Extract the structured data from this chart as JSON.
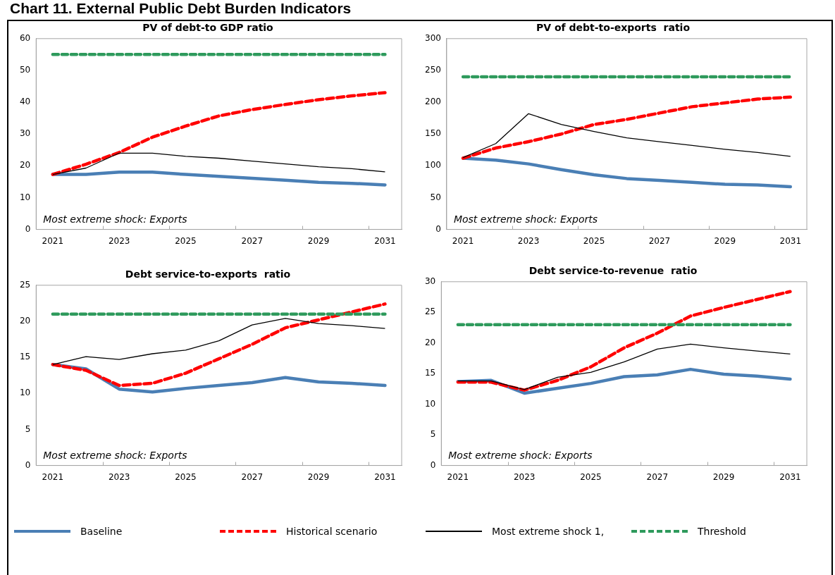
{
  "chart_data": [
    {
      "type": "other",
      "title": "Chart 11. External Public Debt Burden Indicators"
    },
    {
      "type": "line",
      "title": "PV of debt-to GDP ratio",
      "categories": [
        "2021",
        null,
        "2023",
        null,
        "2025",
        null,
        "2027",
        null,
        "2029",
        null,
        "2031"
      ],
      "ylim": [
        0,
        60
      ],
      "yticks": [
        0,
        10,
        20,
        30,
        40,
        50,
        60
      ],
      "grid": false,
      "marker": "none",
      "annotations": [
        "Most extreme shock: Exports"
      ],
      "series": [
        {
          "color": "#4a7fb5",
          "line_style": "solid",
          "values": [
            17.3,
            17.3,
            18,
            18,
            17.3,
            16.7,
            16.1,
            15.5,
            14.8,
            14.5,
            14
          ]
        },
        {
          "color": "#ff0000",
          "line_style": "dashed",
          "values": [
            17.3,
            20.5,
            24.2,
            29,
            32.5,
            35.7,
            37.7,
            39.3,
            40.8,
            42,
            43
          ]
        },
        {
          "color": "#000000",
          "line_style": "solid",
          "values": [
            17.3,
            19.3,
            24,
            24,
            23,
            22.4,
            21.5,
            20.6,
            19.7,
            19.1,
            18.1
          ]
        },
        {
          "color": "#2e9a5c",
          "line_style": "dashed",
          "values": [
            55,
            55,
            55,
            55,
            55,
            55,
            55,
            55,
            55,
            55,
            55
          ]
        }
      ]
    },
    {
      "type": "line",
      "title": "PV of debt-to-exports  ratio",
      "categories": [
        "2021",
        null,
        "2023",
        null,
        "2025",
        null,
        "2027",
        null,
        "2029",
        null,
        "2031"
      ],
      "ylim": [
        0,
        300
      ],
      "yticks": [
        0,
        50,
        100,
        150,
        200,
        250,
        300
      ],
      "grid": false,
      "marker": "none",
      "annotations": [
        "Most extreme shock: Exports"
      ],
      "series": [
        {
          "color": "#4a7fb5",
          "line_style": "solid",
          "values": [
            112,
            109,
            103,
            94,
            86,
            80,
            77,
            74,
            71,
            70,
            67
          ]
        },
        {
          "color": "#ff0000",
          "line_style": "dashed",
          "values": [
            112,
            128,
            138,
            150,
            165,
            173,
            183,
            193,
            199,
            205,
            208
          ]
        },
        {
          "color": "#000000",
          "line_style": "solid",
          "values": [
            113,
            135,
            182,
            165,
            154,
            144,
            138,
            132,
            126,
            121,
            115
          ]
        },
        {
          "color": "#2e9a5c",
          "line_style": "dashed",
          "values": [
            240,
            240,
            240,
            240,
            240,
            240,
            240,
            240,
            240,
            240,
            240
          ]
        }
      ]
    },
    {
      "type": "line",
      "title": "Debt service-to-exports  ratio",
      "categories": [
        "2021",
        null,
        "2023",
        null,
        "2025",
        null,
        "2027",
        null,
        "2029",
        null,
        "2031"
      ],
      "ylim": [
        0,
        25
      ],
      "yticks": [
        0,
        5,
        10,
        15,
        20,
        25
      ],
      "grid": false,
      "marker": "none",
      "annotations": [
        "Most extreme shock: Exports"
      ],
      "series": [
        {
          "color": "#4a7fb5",
          "line_style": "solid",
          "values": [
            14,
            13.4,
            10.6,
            10.2,
            10.7,
            11.1,
            11.5,
            12.2,
            11.6,
            11.4,
            11.1
          ]
        },
        {
          "color": "#ff0000",
          "line_style": "dashed",
          "values": [
            14,
            13.2,
            11.1,
            11.4,
            12.8,
            14.8,
            16.8,
            19.1,
            20.2,
            21.3,
            22.4
          ]
        },
        {
          "color": "#000000",
          "line_style": "solid",
          "values": [
            14,
            15.1,
            14.7,
            15.5,
            16,
            17.3,
            19.5,
            20.4,
            19.7,
            19.4,
            19
          ]
        },
        {
          "color": "#2e9a5c",
          "line_style": "dashed",
          "values": [
            21,
            21,
            21,
            21,
            21,
            21,
            21,
            21,
            21,
            21,
            21
          ]
        }
      ]
    },
    {
      "type": "line",
      "title": "Debt service-to-revenue  ratio",
      "categories": [
        "2021",
        null,
        "2023",
        null,
        "2025",
        null,
        "2027",
        null,
        "2029",
        null,
        "2031"
      ],
      "ylim": [
        0,
        30
      ],
      "yticks": [
        0,
        5,
        10,
        15,
        20,
        25,
        30
      ],
      "grid": false,
      "marker": "none",
      "legend": "bottom",
      "annotations": [
        "Most extreme shock: Exports"
      ],
      "series": [
        {
          "name": "Baseline",
          "color": "#4a7fb5",
          "line_style": "solid",
          "values": [
            13.7,
            13.9,
            11.8,
            12.6,
            13.4,
            14.5,
            14.8,
            15.7,
            14.9,
            14.6,
            14.1
          ]
        },
        {
          "name": "Historical scenario",
          "color": "#ff0000",
          "line_style": "dashed",
          "values": [
            13.6,
            13.6,
            12.3,
            13.9,
            16.1,
            19.2,
            21.6,
            24.4,
            25.8,
            27.1,
            28.4
          ]
        },
        {
          "name": "Most extreme shock 1,",
          "color": "#000000",
          "line_style": "solid",
          "values": [
            13.8,
            13.8,
            12.4,
            14.4,
            15.2,
            16.9,
            19,
            19.8,
            19.2,
            18.7,
            18.2
          ]
        },
        {
          "name": "Threshold",
          "color": "#2e9a5c",
          "line_style": "dashed",
          "values": [
            23,
            23,
            23,
            23,
            23,
            23,
            23,
            23,
            23,
            23,
            23
          ]
        }
      ]
    }
  ]
}
